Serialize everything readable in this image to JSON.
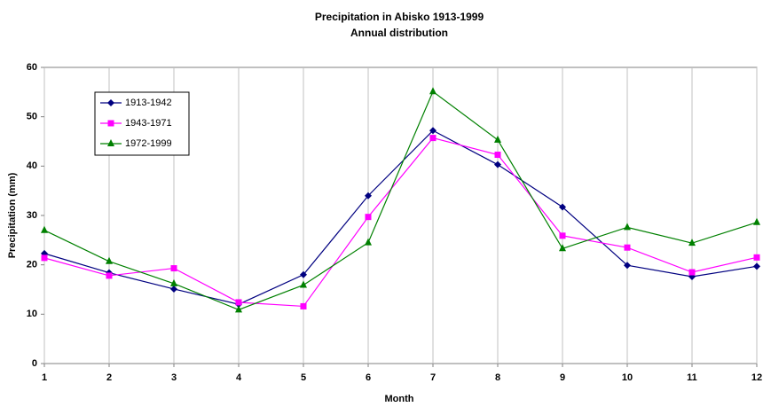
{
  "chart_data": {
    "type": "line",
    "title": "Precipitation in Abisko 1913-1999",
    "subtitle": "Annual distribution",
    "x_label": "Month",
    "y_label": "Precipitation (mm)",
    "x": [
      1,
      2,
      3,
      4,
      5,
      6,
      7,
      8,
      9,
      10,
      11,
      12
    ],
    "series": [
      {
        "name": "1913-1942",
        "color": "#000080",
        "marker": "diamond",
        "values": [
          22.3,
          18.4,
          15.1,
          12.0,
          18.0,
          34.0,
          47.2,
          40.3,
          31.7,
          19.9,
          17.6,
          19.7
        ]
      },
      {
        "name": "1943-1971",
        "color": "#ff00ff",
        "marker": "square",
        "values": [
          21.4,
          17.8,
          19.3,
          12.4,
          11.6,
          29.7,
          45.7,
          42.3,
          25.9,
          23.5,
          18.5,
          21.5
        ]
      },
      {
        "name": "1972-1999",
        "color": "#008000",
        "marker": "triangle",
        "values": [
          27.0,
          20.7,
          16.2,
          10.9,
          15.9,
          24.5,
          55.1,
          45.3,
          23.3,
          27.6,
          24.4,
          28.6
        ]
      }
    ],
    "xlim": [
      1,
      12
    ],
    "xticks": [
      1,
      2,
      3,
      4,
      5,
      6,
      7,
      8,
      9,
      10,
      11,
      12
    ],
    "ylim": [
      0,
      60
    ],
    "yticks": [
      0,
      10,
      20,
      30,
      40,
      50,
      60
    ],
    "grid": "x",
    "legend": "top-left"
  }
}
